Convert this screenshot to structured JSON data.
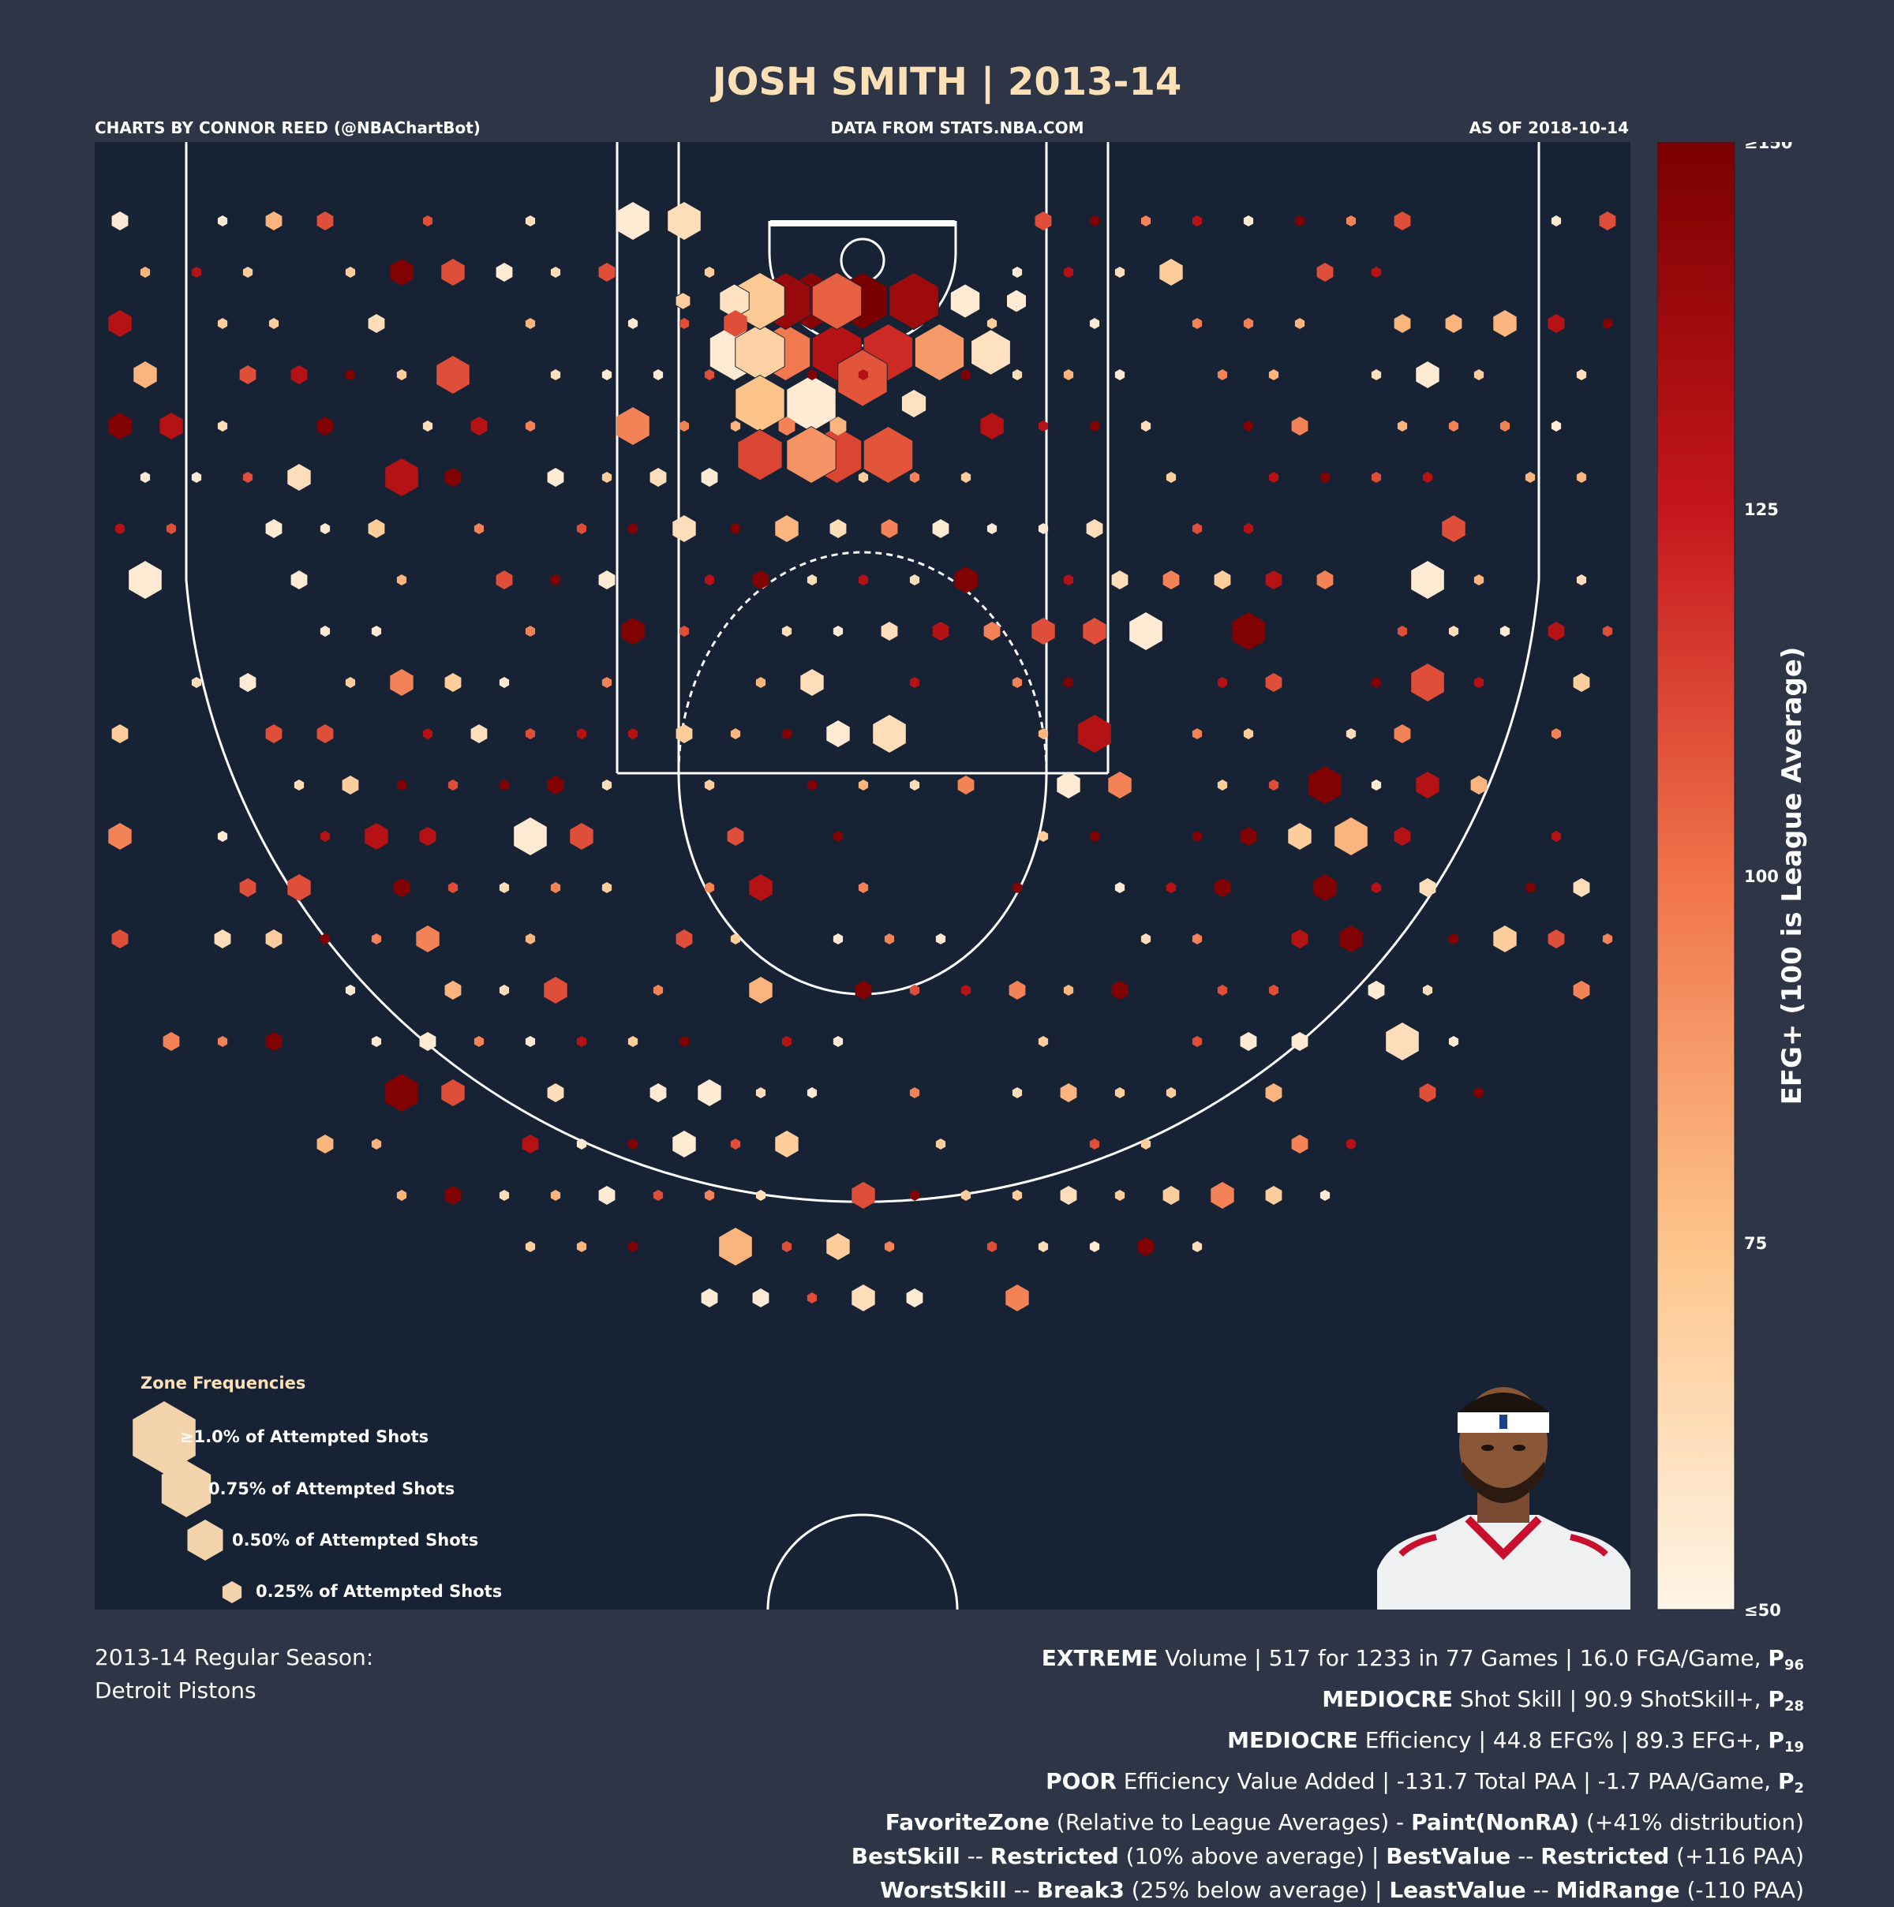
{
  "title": "JOSH SMITH | 2013-14",
  "credits": {
    "left": "CHARTS BY CONNOR REED (@NBAChartBot)",
    "center": "DATA FROM STATS.NBA.COM",
    "right": "AS OF 2018-10-14"
  },
  "colors": {
    "background": "#2e3547",
    "court": "#172335",
    "title": "#fde0b5",
    "scale_low": "#fff5e6",
    "scale_mid": "#fdc48a",
    "scale_midhigh": "#f0734a",
    "scale_high": "#7a0000"
  },
  "legend": {
    "title": "Zone Frequencies",
    "items": [
      "≥1.0% of Attempted Shots",
      "0.75% of Attempted Shots",
      "0.50% of Attempted Shots",
      "0.25% of Attempted Shots"
    ]
  },
  "colorbar": {
    "label": "EFG+ (100 is League Average)",
    "ticks": [
      "≥150",
      "125",
      "100",
      "75",
      "≤50"
    ]
  },
  "footer_left": {
    "line1": "2013-14 Regular Season:",
    "line2": "Detroit Pistons"
  },
  "footer_right": {
    "l1": {
      "b1": "EXTREME",
      "t1": " Volume | 517 for 1233 in 77 Games | 16.0 FGA/Game, ",
      "p": "P",
      "sub": "96"
    },
    "l2": {
      "b1": "MEDIOCRE",
      "t1": " Shot Skill | 90.9 ShotSkill+, ",
      "p": "P",
      "sub": "28"
    },
    "l3": {
      "b1": "MEDIOCRE",
      "t1": " Efficiency | 44.8 EFG% | 89.3 EFG+, ",
      "p": "P",
      "sub": "19"
    },
    "l4": {
      "b1": "POOR",
      "t1": " Efficiency Value Added | -131.7 Total PAA | -1.7 PAA/Game, ",
      "p": "P",
      "sub": "2"
    },
    "l5": {
      "b1": "FavoriteZone",
      "t1": " (Relative to League Averages) - ",
      "b2": "Paint(NonRA)",
      "t2": " (+41% distribution)"
    },
    "l6": {
      "b1": "BestSkill",
      "t1": " -- ",
      "b2": "Restricted",
      "t2": " (10% above average) | ",
      "b3": "BestValue",
      "t3": " -- ",
      "b4": "Restricted",
      "t4": " (+116 PAA)"
    },
    "l7": {
      "b1": "WorstSkill",
      "t1": " -- ",
      "b2": "Break3",
      "t2": " (25% below average) | ",
      "b3": "LeastValue",
      "t3": " -- ",
      "b4": "MidRange",
      "t4": " (-110 PAA)"
    }
  },
  "chart_data": {
    "type": "scatter",
    "encoding": "hexbin shot chart: size = share of attempted shots (%), color = EFG+",
    "efg_range": [
      50,
      150
    ],
    "points": [
      {
        "x": 0,
        "y": 1.5,
        "freq": 1.2,
        "efg": 150
      },
      {
        "x": -1,
        "y": 1.5,
        "freq": 1.2,
        "efg": 145
      },
      {
        "x": 1,
        "y": 1.5,
        "freq": 1.2,
        "efg": 138
      },
      {
        "x": -0.5,
        "y": 2.5,
        "freq": 1.2,
        "efg": 130
      },
      {
        "x": 0.5,
        "y": 2.5,
        "freq": 1.2,
        "efg": 120
      },
      {
        "x": -1.5,
        "y": 2.5,
        "freq": 1.2,
        "efg": 98
      },
      {
        "x": 1.5,
        "y": 2.5,
        "freq": 1.2,
        "efg": 88
      },
      {
        "x": -2.5,
        "y": 2.5,
        "freq": 1.2,
        "efg": 55
      },
      {
        "x": 2.5,
        "y": 2.5,
        "freq": 0.8,
        "efg": 60
      },
      {
        "x": -2,
        "y": 2.5,
        "freq": 1.2,
        "efg": 68
      },
      {
        "x": 0,
        "y": 3,
        "freq": 1.2,
        "efg": 108
      },
      {
        "x": -0.5,
        "y": 1.5,
        "freq": 1.2,
        "efg": 105
      },
      {
        "x": -1.5,
        "y": 1.5,
        "freq": 1.2,
        "efg": 140
      },
      {
        "x": -2,
        "y": 1.5,
        "freq": 1.2,
        "efg": 72
      },
      {
        "x": 1,
        "y": 1.5,
        "freq": 1.2,
        "efg": 138
      },
      {
        "x": -2,
        "y": 3.5,
        "freq": 1.0,
        "efg": 75
      },
      {
        "x": -1,
        "y": 3.5,
        "freq": 1.2,
        "efg": 55
      },
      {
        "x": -2.5,
        "y": 1.5,
        "freq": 0.6,
        "efg": 60
      },
      {
        "x": 2,
        "y": 1.5,
        "freq": 0.6,
        "efg": 55
      },
      {
        "x": 3,
        "y": 1.5,
        "freq": 0.4,
        "efg": 55
      },
      {
        "x": -3.5,
        "y": 1.5,
        "freq": 0.3,
        "efg": 70
      },
      {
        "x": -0.5,
        "y": 4.5,
        "freq": 1.2,
        "efg": 112
      },
      {
        "x": 0.5,
        "y": 4.5,
        "freq": 1.2,
        "efg": 108
      },
      {
        "x": -1,
        "y": 4.5,
        "freq": 1.2,
        "efg": 90
      },
      {
        "x": -2,
        "y": 4.5,
        "freq": 0.9,
        "efg": 112
      },
      {
        "x": 1,
        "y": 3.5,
        "freq": 0.5,
        "efg": 60
      }
    ]
  }
}
